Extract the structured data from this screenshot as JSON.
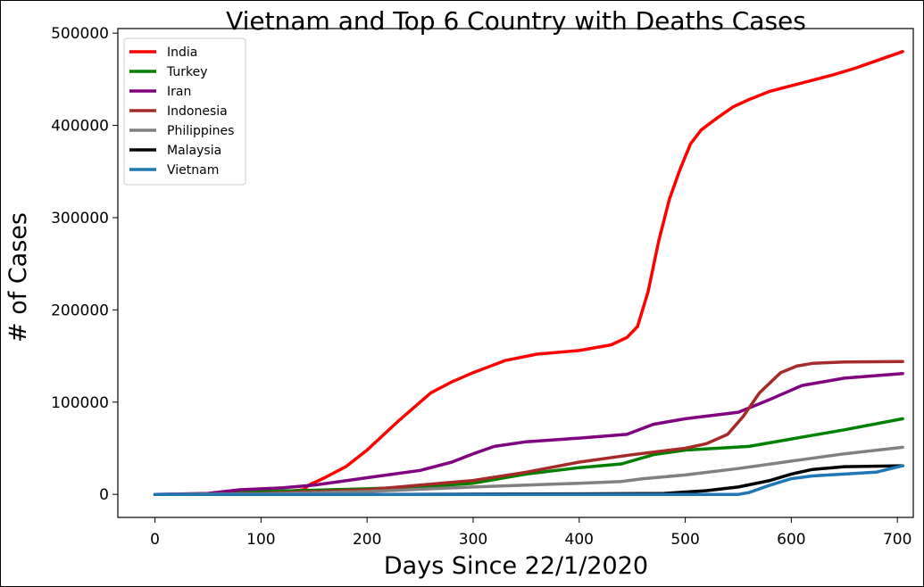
{
  "chart_data": {
    "type": "line",
    "title": "Vietnam and Top 6 Country with Deaths Cases",
    "xlabel": "Days Since 22/1/2020",
    "ylabel": "# of Cases",
    "xlim": [
      -35,
      715
    ],
    "ylim": [
      -25000,
      505000
    ],
    "xticks": [
      0,
      100,
      200,
      300,
      400,
      500,
      600,
      700
    ],
    "yticks": [
      0,
      100000,
      200000,
      300000,
      400000,
      500000
    ],
    "grid": false,
    "legend_position": "upper-left",
    "series": [
      {
        "name": "India",
        "color": "#ff0000",
        "x": [
          0,
          50,
          100,
          140,
          145,
          160,
          180,
          200,
          230,
          260,
          280,
          300,
          330,
          360,
          400,
          430,
          445,
          455,
          465,
          475,
          485,
          495,
          505,
          515,
          530,
          545,
          560,
          580,
          600,
          620,
          640,
          660,
          680,
          705
        ],
        "y": [
          0,
          0,
          0,
          5000,
          10000,
          18000,
          30000,
          48000,
          80000,
          110000,
          122000,
          132000,
          145000,
          152000,
          156000,
          162000,
          170000,
          182000,
          220000,
          275000,
          320000,
          352000,
          380000,
          395000,
          408000,
          420000,
          428000,
          437000,
          443000,
          449000,
          455000,
          462000,
          470000,
          480000
        ]
      },
      {
        "name": "Turkey",
        "color": "#008000",
        "x": [
          0,
          50,
          100,
          150,
          200,
          250,
          300,
          350,
          400,
          440,
          470,
          500,
          530,
          560,
          600,
          650,
          705
        ],
        "y": [
          0,
          0,
          3000,
          4500,
          6000,
          8000,
          12000,
          22000,
          29000,
          33000,
          43000,
          48000,
          50000,
          52000,
          60000,
          70000,
          82000
        ]
      },
      {
        "name": "Iran",
        "color": "#800080",
        "x": [
          0,
          50,
          80,
          120,
          150,
          200,
          250,
          280,
          300,
          320,
          350,
          400,
          445,
          470,
          500,
          550,
          580,
          610,
          650,
          705
        ],
        "y": [
          0,
          1000,
          5000,
          7000,
          10000,
          18000,
          26000,
          35000,
          44000,
          52000,
          57000,
          61000,
          65000,
          76000,
          82000,
          89000,
          103000,
          118000,
          126000,
          131000
        ]
      },
      {
        "name": "Indonesia",
        "color": "#a52a2a",
        "x": [
          0,
          100,
          200,
          250,
          300,
          350,
          400,
          450,
          500,
          520,
          540,
          555,
          570,
          590,
          605,
          620,
          650,
          705
        ],
        "y": [
          0,
          1000,
          5000,
          10000,
          15000,
          24000,
          35000,
          43000,
          50000,
          55000,
          65000,
          85000,
          110000,
          132000,
          139000,
          142000,
          143500,
          144000
        ]
      },
      {
        "name": "Philippines",
        "color": "#808080",
        "x": [
          0,
          100,
          200,
          300,
          400,
          440,
          460,
          500,
          550,
          600,
          650,
          705
        ],
        "y": [
          0,
          500,
          3000,
          8000,
          12000,
          14000,
          17000,
          21000,
          28000,
          36000,
          44000,
          51000
        ]
      },
      {
        "name": "Malaysia",
        "color": "#000000",
        "x": [
          0,
          100,
          200,
          300,
          400,
          480,
          520,
          550,
          580,
          600,
          620,
          650,
          705
        ],
        "y": [
          0,
          0,
          0,
          200,
          500,
          1000,
          4000,
          8000,
          15000,
          22000,
          27000,
          30000,
          31000
        ]
      },
      {
        "name": "Vietnam",
        "color": "#1f77b4",
        "x": [
          0,
          100,
          200,
          300,
          400,
          500,
          550,
          560,
          580,
          600,
          620,
          650,
          680,
          705
        ],
        "y": [
          0,
          0,
          0,
          0,
          0,
          0,
          0,
          2000,
          10000,
          17000,
          20000,
          22000,
          24000,
          31000
        ]
      }
    ]
  }
}
